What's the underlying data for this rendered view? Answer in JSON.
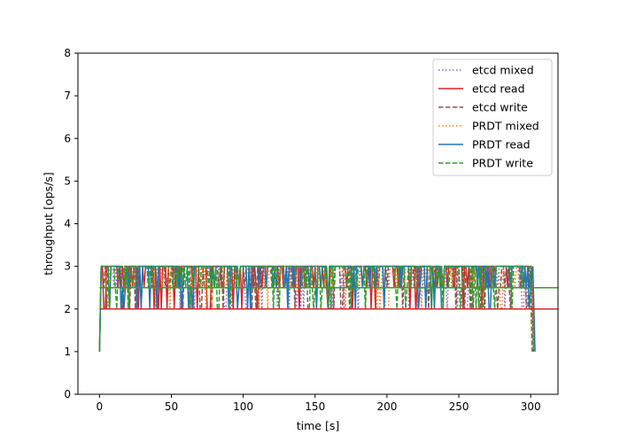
{
  "chart_data": {
    "type": "line",
    "xlabel": "time [s]",
    "ylabel": "throughput [ops/s]",
    "xlim": [
      -15,
      319
    ],
    "ylim": [
      0,
      8
    ],
    "xticks": [
      0,
      50,
      100,
      150,
      200,
      250,
      300
    ],
    "yticks": [
      0,
      1,
      2,
      3,
      4,
      5,
      6,
      7,
      8
    ],
    "grid": false,
    "legend_position": "top-right",
    "series": [
      {
        "name": "etcd mixed",
        "color": "#9467bd",
        "dash": "dotted",
        "summary": {
          "start": 1,
          "ramp_end_x": 1,
          "min": 2,
          "max": 3,
          "end": 1,
          "end_x": 303
        }
      },
      {
        "name": "etcd read",
        "color": "#d62728",
        "dash": "solid",
        "summary": {
          "start": 1,
          "ramp_end_x": 1,
          "min": 2,
          "max": 3,
          "end": 1,
          "end_x": 302
        }
      },
      {
        "name": "etcd write",
        "color": "#8c564b",
        "dash": "dashed",
        "summary": {
          "start": 1,
          "ramp_end_x": 1,
          "min": 2,
          "max": 3,
          "end": 1,
          "end_x": 302
        }
      },
      {
        "name": "PRDT mixed",
        "color": "#ff7f0e",
        "dash": "dotted",
        "summary": {
          "start": 1,
          "ramp_end_x": 1,
          "min": 2,
          "max": 3,
          "end": 1,
          "end_x": 302
        }
      },
      {
        "name": "PRDT read",
        "color": "#1f77b4",
        "dash": "solid",
        "summary": {
          "start": 1,
          "ramp_end_x": 1,
          "min": 2,
          "max": 3,
          "end": 1,
          "end_x": 303
        }
      },
      {
        "name": "PRDT write",
        "color": "#2ca02c",
        "dash": "dashed",
        "summary": {
          "start": 1,
          "ramp_end_x": 1,
          "min": 2,
          "max": 3,
          "end": 1,
          "end_x": 301
        }
      }
    ],
    "reference_lines": [
      {
        "y": 2.0,
        "color": "#d62728",
        "x_from": 0,
        "x_to": 303
      },
      {
        "y": 2.5,
        "color": "#2ca02c",
        "x_from": 0,
        "x_to": 303
      }
    ]
  }
}
